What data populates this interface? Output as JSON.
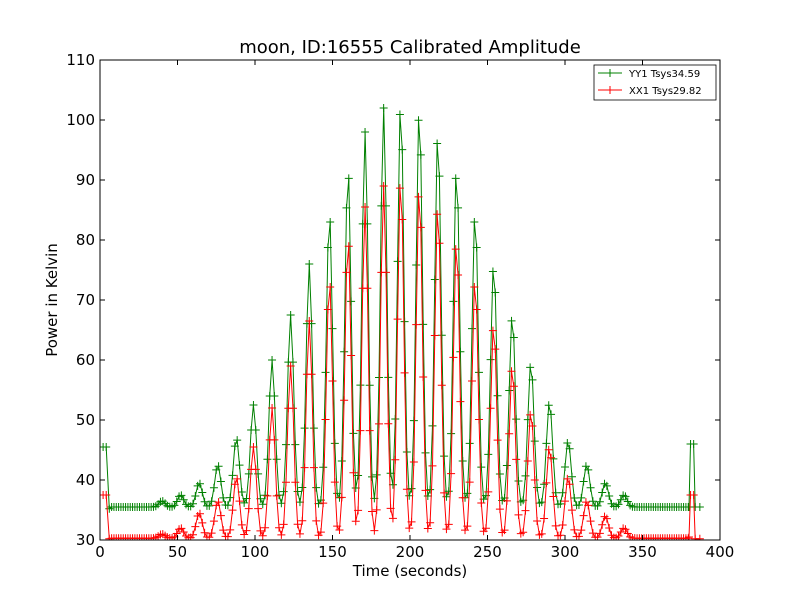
{
  "chart_data": {
    "type": "line",
    "title": "moon, ID:16555 Calibrated Amplitude",
    "xlabel": "Time (seconds)",
    "ylabel": "Power in Kelvin",
    "xlim": [
      0,
      400
    ],
    "ylim": [
      30,
      110
    ],
    "xticks": [
      "0",
      "50",
      "100",
      "150",
      "200",
      "250",
      "300",
      "350",
      "400"
    ],
    "yticks": [
      "30",
      "40",
      "50",
      "60",
      "70",
      "80",
      "90",
      "100",
      "110"
    ],
    "grid": false,
    "legend_position": "top-right",
    "sample_interval_seconds": 1.5,
    "sweep_start": 6,
    "sweep_end": 378,
    "series": [
      {
        "name": "YY1 Tsys34.59",
        "color": "#008000",
        "baseline": 35.5,
        "edge_points": [
          [
            2,
            45.5
          ],
          [
            4,
            45.5
          ],
          [
            6,
            35.2
          ],
          [
            380,
            35.5
          ],
          [
            381,
            46
          ],
          [
            383,
            46
          ],
          [
            384,
            35.5
          ],
          [
            387,
            35.5
          ]
        ],
        "peaks": [
          [
            40,
            36.5
          ],
          [
            52,
            37.5
          ],
          [
            64,
            39.5
          ],
          [
            76,
            42.5
          ],
          [
            88,
            47
          ],
          [
            99,
            52.5
          ],
          [
            111,
            60
          ],
          [
            123,
            67.5
          ],
          [
            135,
            76
          ],
          [
            148,
            84.5
          ],
          [
            160,
            92
          ],
          [
            171,
            98
          ],
          [
            183,
            102
          ],
          [
            194,
            103
          ],
          [
            206,
            102
          ],
          [
            218,
            98
          ],
          [
            230,
            92
          ],
          [
            242,
            84.5
          ],
          [
            254,
            76
          ],
          [
            266,
            67.5
          ],
          [
            278,
            59.5
          ],
          [
            290,
            53
          ],
          [
            302,
            46.5
          ],
          [
            314,
            42.5
          ],
          [
            326,
            39.5
          ],
          [
            338,
            37.5
          ]
        ]
      },
      {
        "name": "XX1 Tsys29.82",
        "color": "#ff0000",
        "baseline": 30.3,
        "edge_points": [
          [
            2,
            37.5
          ],
          [
            4,
            37.5
          ],
          [
            6,
            30.2
          ],
          [
            380,
            30.5
          ],
          [
            381,
            37.5
          ],
          [
            383,
            37.5
          ],
          [
            384,
            30.2
          ],
          [
            387,
            30.2
          ]
        ],
        "peaks": [
          [
            40,
            31
          ],
          [
            52,
            32
          ],
          [
            64,
            34.5
          ],
          [
            76,
            36.5
          ],
          [
            88,
            40.5
          ],
          [
            99,
            45.5
          ],
          [
            111,
            52
          ],
          [
            123,
            59
          ],
          [
            135,
            66.5
          ],
          [
            148,
            73.5
          ],
          [
            160,
            80.5
          ],
          [
            171,
            85.5
          ],
          [
            183,
            89
          ],
          [
            194,
            90.5
          ],
          [
            206,
            89
          ],
          [
            218,
            86
          ],
          [
            230,
            80
          ],
          [
            242,
            73.5
          ],
          [
            254,
            66
          ],
          [
            266,
            59
          ],
          [
            278,
            51.5
          ],
          [
            290,
            45.5
          ],
          [
            302,
            40.5
          ],
          [
            314,
            36.5
          ],
          [
            326,
            34
          ],
          [
            338,
            32
          ]
        ]
      }
    ]
  }
}
